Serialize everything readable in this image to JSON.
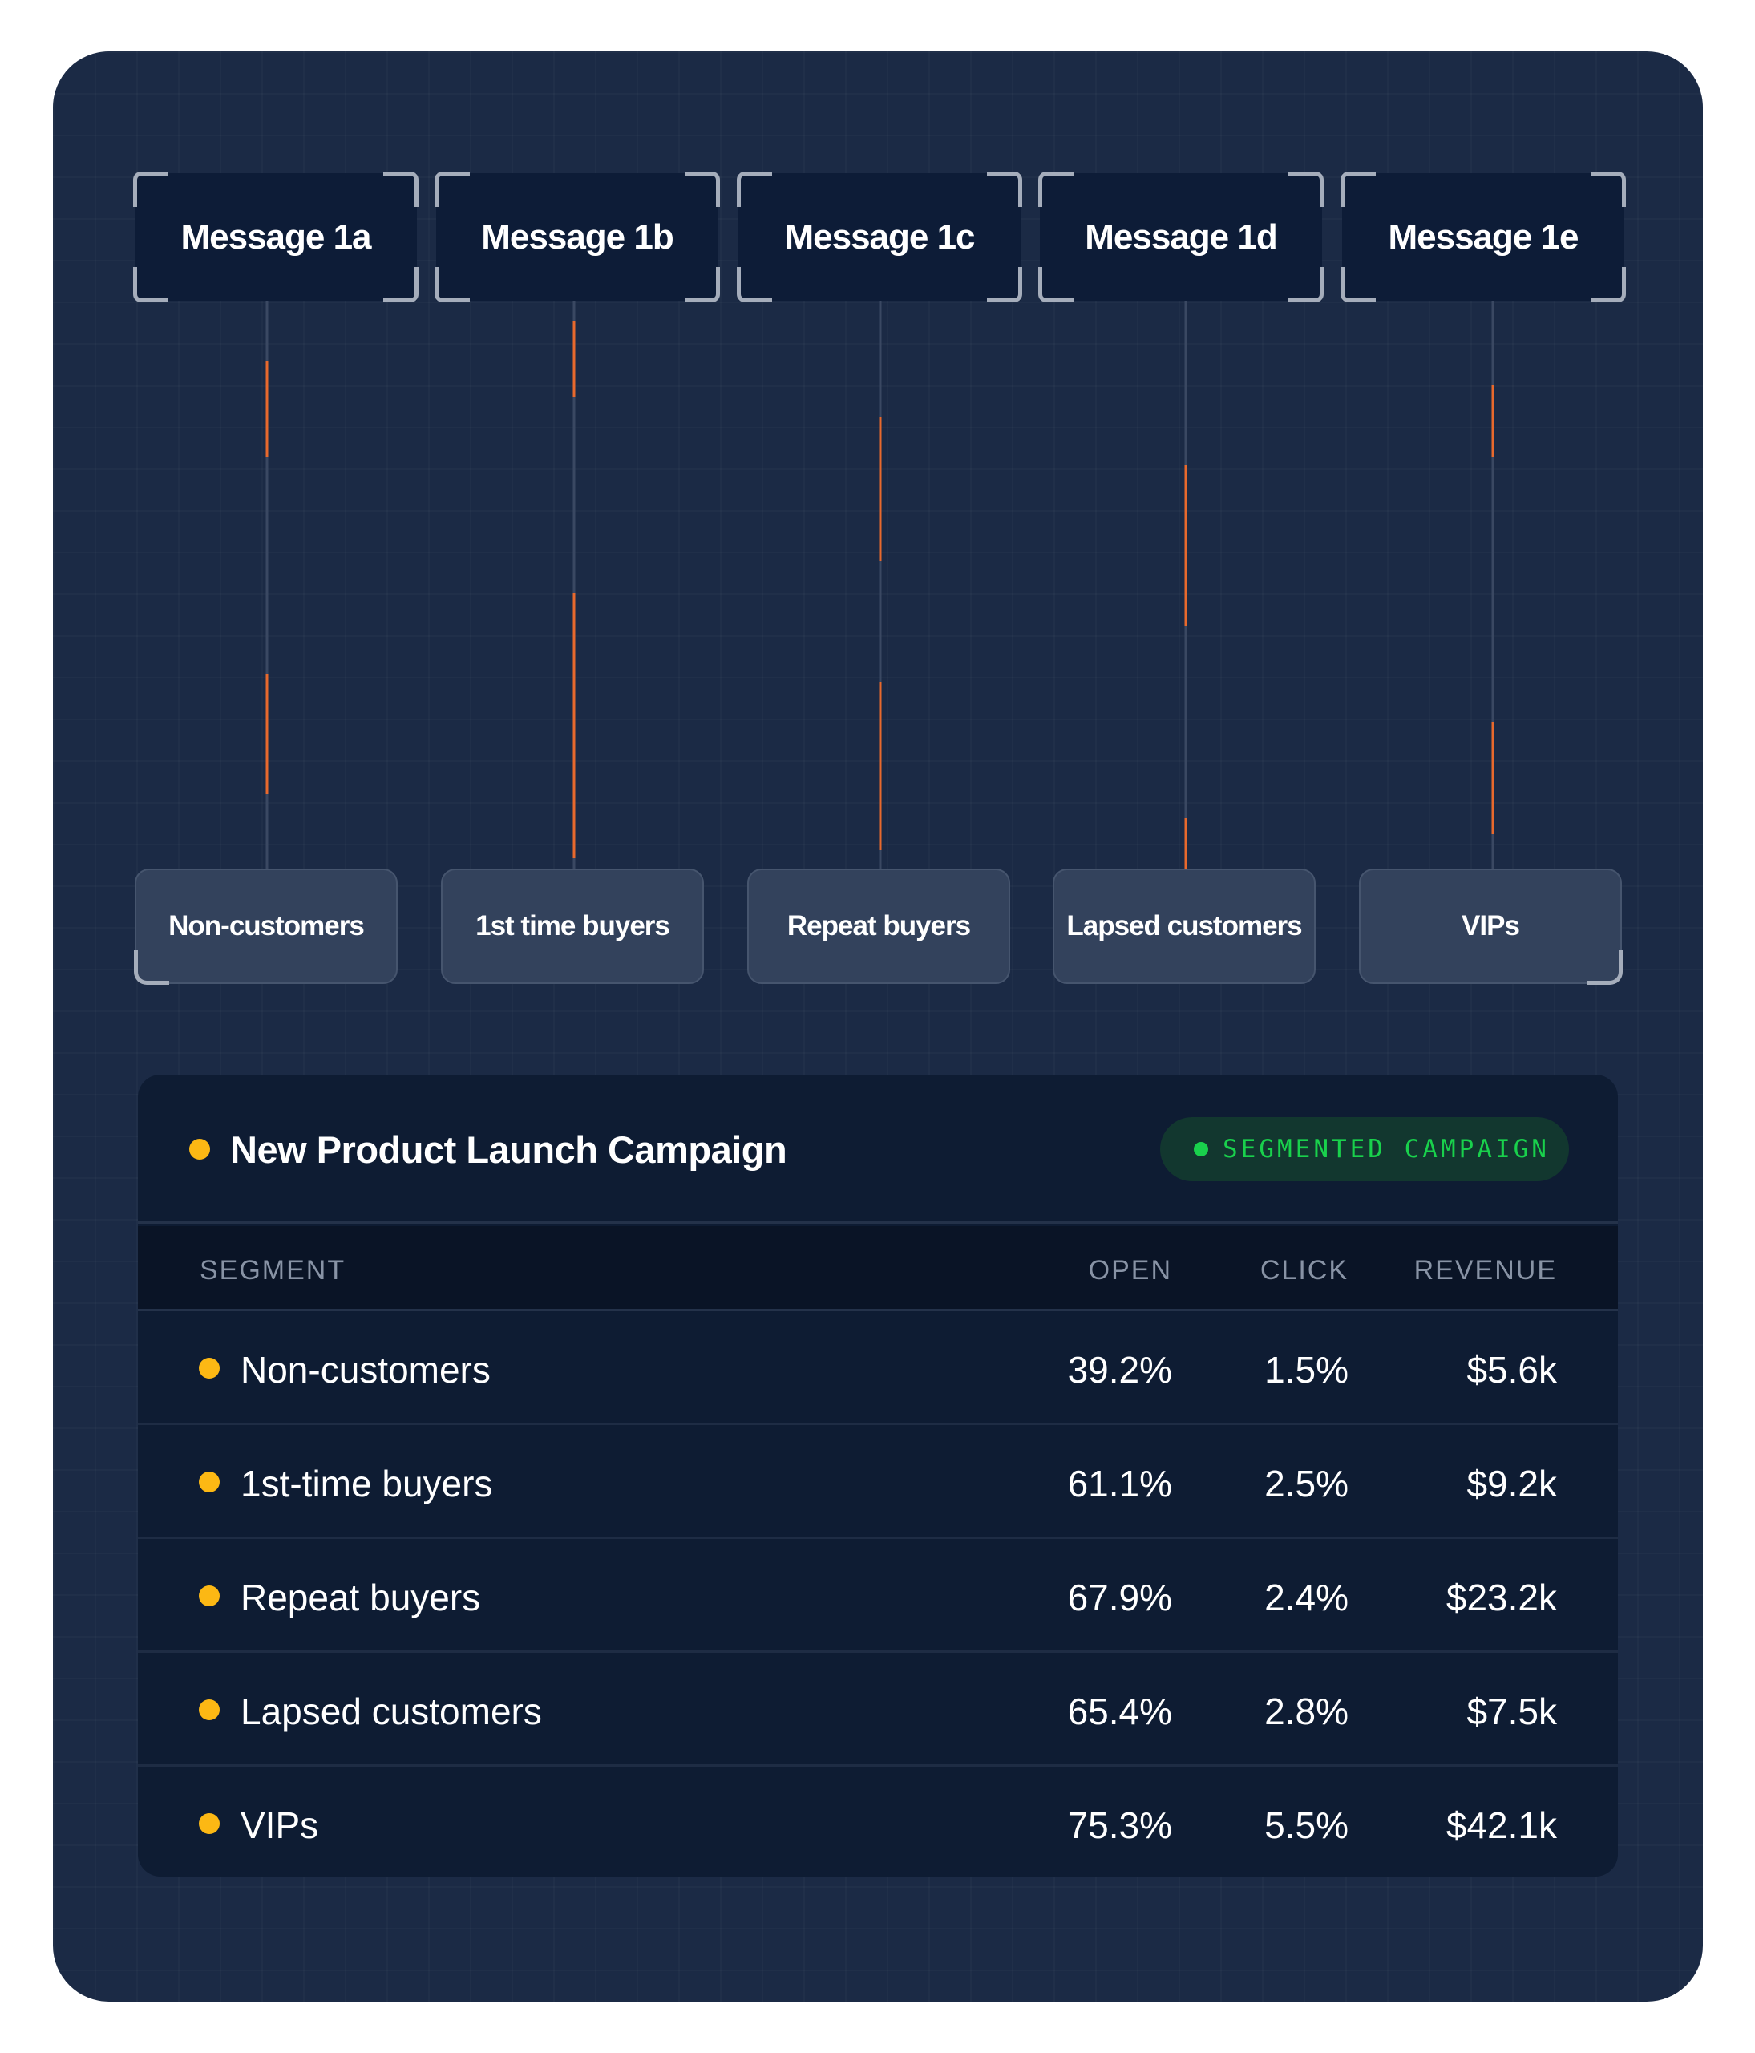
{
  "messages": [
    "Message 1a",
    "Message 1b",
    "Message 1c",
    "Message 1d",
    "Message 1e"
  ],
  "segments": [
    "Non-customers",
    "1st time buyers",
    "Repeat buyers",
    "Lapsed customers",
    "VIPs"
  ],
  "campaign": {
    "title": "New Product Launch Campaign",
    "badge": "SEGMENTED CAMPAIGN",
    "columns": [
      "SEGMENT",
      "OPEN",
      "CLICK",
      "REVENUE"
    ],
    "rows": [
      {
        "segment": "Non-customers",
        "open": "39.2%",
        "click": "1.5%",
        "revenue": "$5.6k"
      },
      {
        "segment": "1st-time buyers",
        "open": "61.1%",
        "click": "2.5%",
        "revenue": "$9.2k"
      },
      {
        "segment": "Repeat buyers",
        "open": "67.9%",
        "click": "2.4%",
        "revenue": "$23.2k"
      },
      {
        "segment": "Lapsed customers",
        "open": "65.4%",
        "click": "2.8%",
        "revenue": "$7.5k"
      },
      {
        "segment": "VIPs",
        "open": "75.3%",
        "click": "5.5%",
        "revenue": "$42.1k"
      }
    ]
  },
  "colors": {
    "panel": "#1b2a45",
    "accent_dot": "#fcb814",
    "badge_green": "#19d14c",
    "wire_highlight": "#e8692d"
  }
}
